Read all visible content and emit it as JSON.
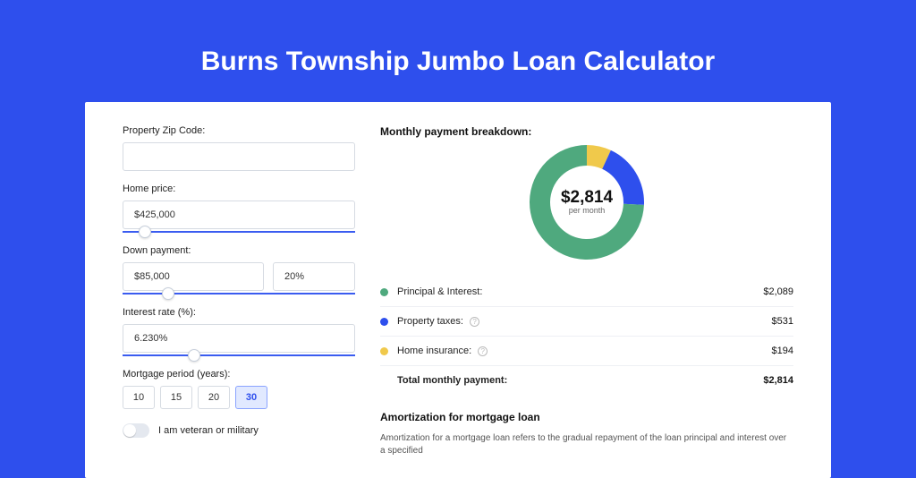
{
  "title": "Burns Township Jumbo Loan Calculator",
  "colors": {
    "page_bg": "#2e4fed",
    "card_bg": "#ffffff",
    "principal": "#4fa97e",
    "taxes": "#2e4fed",
    "insurance": "#f0c94b",
    "donut_track": "#f0f0f0",
    "slider": "#3a5cf0",
    "border": "#d6dbe2"
  },
  "form": {
    "zip": {
      "label": "Property Zip Code:",
      "value": ""
    },
    "home_price": {
      "label": "Home price:",
      "value": "$425,000",
      "slider_pct": 7
    },
    "down_payment": {
      "label": "Down payment:",
      "value": "$85,000",
      "pct_value": "20%",
      "slider_pct": 17
    },
    "interest_rate": {
      "label": "Interest rate (%):",
      "value": "6.230%",
      "slider_pct": 28
    },
    "mortgage_period": {
      "label": "Mortgage period (years):",
      "options": [
        "10",
        "15",
        "20",
        "30"
      ],
      "selected": "30"
    },
    "veteran": {
      "label": "I am veteran or military",
      "checked": false
    }
  },
  "breakdown": {
    "title": "Monthly payment breakdown:",
    "center_amount": "$2,814",
    "center_sub": "per month",
    "donut": {
      "size": 128,
      "thickness": 23,
      "slices": [
        {
          "key": "principal",
          "color": "#4fa97e",
          "pct": 74.3
        },
        {
          "key": "taxes",
          "color": "#2e4fed",
          "pct": 18.8
        },
        {
          "key": "insurance",
          "color": "#f0c94b",
          "pct": 6.9
        }
      ]
    },
    "rows": [
      {
        "dot": "#4fa97e",
        "label": "Principal & Interest:",
        "info": false,
        "value": "$2,089"
      },
      {
        "dot": "#2e4fed",
        "label": "Property taxes:",
        "info": true,
        "value": "$531"
      },
      {
        "dot": "#f0c94b",
        "label": "Home insurance:",
        "info": true,
        "value": "$194"
      }
    ],
    "total": {
      "label": "Total monthly payment:",
      "value": "$2,814"
    }
  },
  "amortization": {
    "title": "Amortization for mortgage loan",
    "text": "Amortization for a mortgage loan refers to the gradual repayment of the loan principal and interest over a specified"
  }
}
